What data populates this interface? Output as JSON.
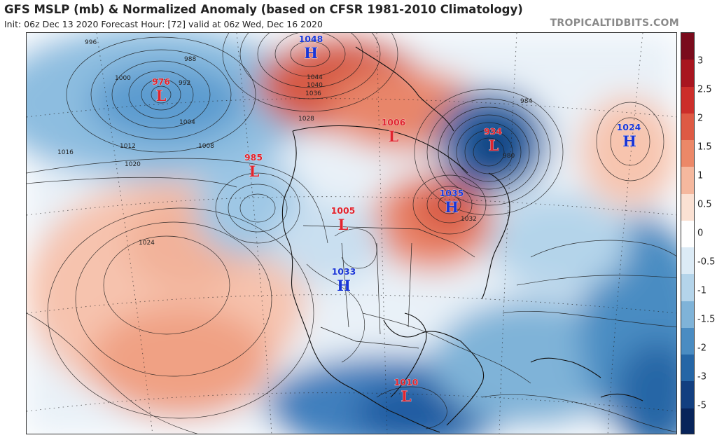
{
  "header": {
    "title": "GFS MSLP (mb) & Normalized Anomaly (based on CFSR 1981-2010 Climatology)",
    "subtitle": "Init: 06z Dec 13 2020   Forecast Hour: [72]   valid at 06z Wed, Dec 16 2020",
    "brand": "TROPICALTIDBITS.COM"
  },
  "colorbar": {
    "ticks": [
      "3",
      "2.5",
      "2",
      "1.5",
      "1",
      "0.5",
      "0",
      "-0.5",
      "-1",
      "-1.5",
      "-2",
      "-3",
      "-5"
    ],
    "colors": [
      "#7a0b1c",
      "#a8151f",
      "#cc2e2a",
      "#de5a44",
      "#ec8868",
      "#f5b89e",
      "#fbe1d3",
      "#ffffff",
      "#dcebf6",
      "#b4d4ea",
      "#7fb3d8",
      "#4a8cc2",
      "#2566a6",
      "#123f80",
      "#08245a"
    ]
  },
  "pressure_centers": [
    {
      "type": "L",
      "value": "976"
    },
    {
      "type": "H",
      "value": "1048"
    },
    {
      "type": "L",
      "value": "985"
    },
    {
      "type": "L",
      "value": "1006"
    },
    {
      "type": "L",
      "value": "934"
    },
    {
      "type": "H",
      "value": "1024"
    },
    {
      "type": "H",
      "value": "1035"
    },
    {
      "type": "L",
      "value": "1005"
    },
    {
      "type": "H",
      "value": "1033"
    },
    {
      "type": "L",
      "value": "1010"
    }
  ],
  "isobar_labels": [
    "996",
    "1000",
    "988",
    "992",
    "1004",
    "1008",
    "1012",
    "1016",
    "1020",
    "1024",
    "1028",
    "1032",
    "1036",
    "1040",
    "1044",
    "980",
    "984"
  ]
}
